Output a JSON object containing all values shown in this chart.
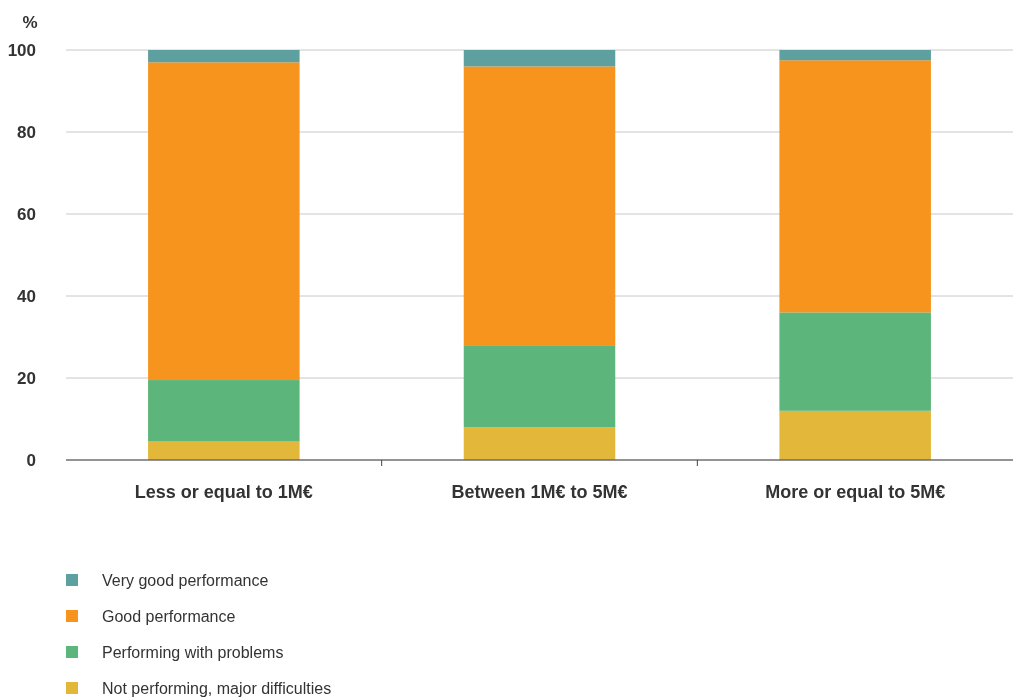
{
  "chart_data": {
    "type": "bar",
    "stacked": true,
    "ylabel": "%",
    "categories": [
      "Less or equal to 1M€",
      "Between 1M€ to 5M€",
      "More or equal to 5M€"
    ],
    "series": [
      {
        "name": "Not performing, major difficulties",
        "color": "#e3b73a",
        "values": [
          4.5,
          8,
          12
        ]
      },
      {
        "name": "Performing with problems",
        "color": "#5cb57a",
        "values": [
          15,
          20,
          24
        ]
      },
      {
        "name": "Good performance",
        "color": "#f7941d",
        "values": [
          77.5,
          68,
          61.5
        ]
      },
      {
        "name": "Very good performance",
        "color": "#5e9fa0",
        "values": [
          3,
          4,
          2.5
        ]
      }
    ],
    "ylim": [
      0,
      100
    ],
    "yticks": [
      0,
      20,
      40,
      60,
      80,
      100
    ],
    "grid": "y",
    "legend": "bottom"
  }
}
